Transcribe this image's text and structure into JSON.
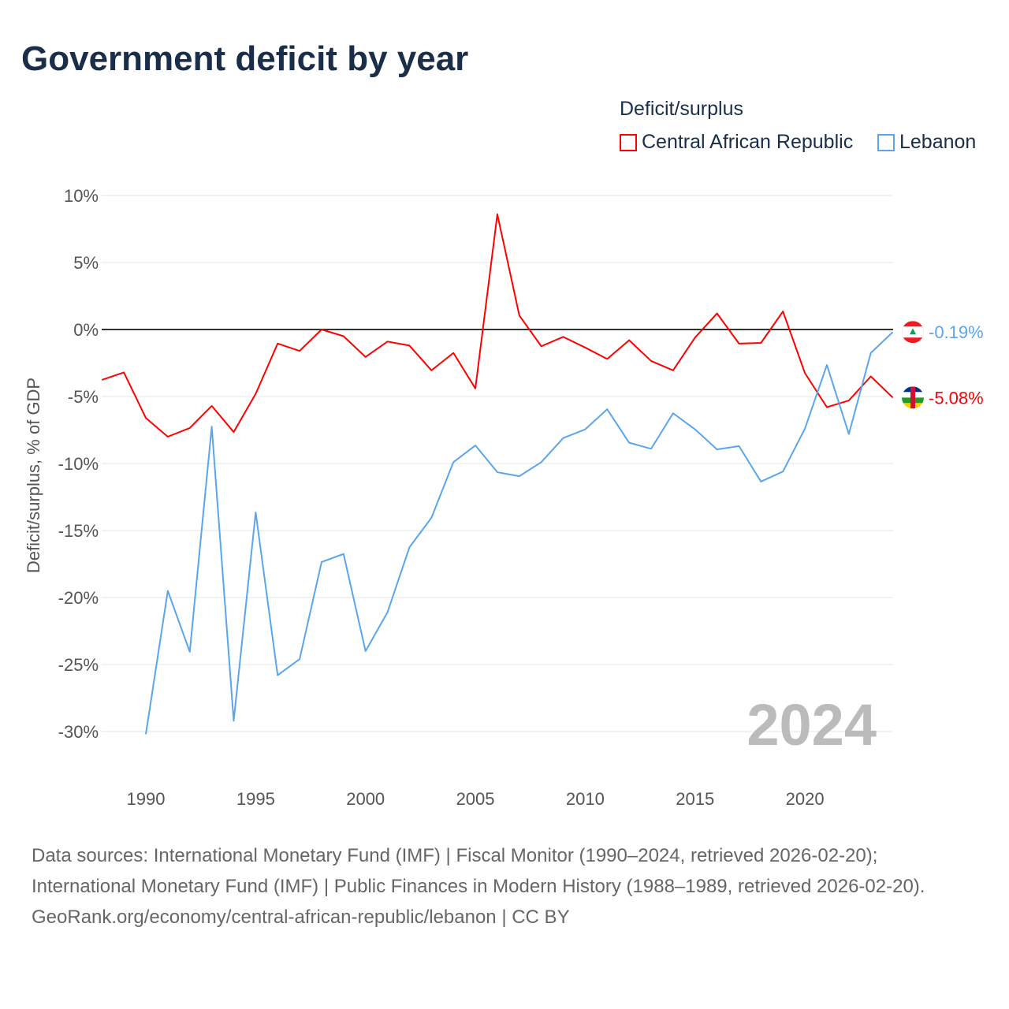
{
  "title": "Government deficit by year",
  "legend": {
    "title": "Deficit/surplus",
    "items": [
      {
        "label": "Central African Republic",
        "color": "#ff0000"
      },
      {
        "label": "Lebanon",
        "color": "#5ba6ea"
      }
    ]
  },
  "chart_data": {
    "type": "line",
    "title": "Government deficit by year",
    "xlabel": "",
    "ylabel": "Deficit/surplus, % of GDP",
    "xlim": [
      1988,
      2024
    ],
    "ylim": [
      -33,
      10
    ],
    "x_ticks": [
      1990,
      1995,
      2000,
      2005,
      2010,
      2015,
      2020
    ],
    "y_ticks": [
      10,
      5,
      0,
      -5,
      -10,
      -15,
      -20,
      -25,
      -30
    ],
    "y_tick_labels": [
      "10%",
      "5%",
      "0%",
      "-5%",
      "-10%",
      "-15%",
      "-20%",
      "-25%",
      "-30%"
    ],
    "grid": true,
    "legend_position": "top-right",
    "year_watermark": "2024",
    "series": [
      {
        "name": "Central African Republic",
        "color": "#ff0000",
        "end_label": "-5.08%",
        "x": [
          1988,
          1989,
          1990,
          1991,
          1992,
          1993,
          1994,
          1995,
          1996,
          1997,
          1998,
          1999,
          2000,
          2001,
          2002,
          2003,
          2004,
          2005,
          2006,
          2007,
          2008,
          2009,
          2010,
          2011,
          2012,
          2013,
          2014,
          2015,
          2016,
          2017,
          2018,
          2019,
          2020,
          2021,
          2022,
          2023,
          2024
        ],
        "values": [
          -3.76,
          -3.2,
          -6.6,
          -8.0,
          -7.35,
          -5.7,
          -7.65,
          -4.8,
          -1.05,
          -1.6,
          0.0,
          -0.5,
          -2.05,
          -0.9,
          -1.2,
          -3.05,
          -1.75,
          -4.4,
          8.6,
          1.05,
          -1.25,
          -0.55,
          -1.35,
          -2.2,
          -0.8,
          -2.35,
          -3.05,
          -0.6,
          1.2,
          -1.05,
          -1.0,
          1.35,
          -3.25,
          -5.8,
          -5.3,
          -3.5,
          -5.08
        ]
      },
      {
        "name": "Lebanon",
        "color": "#5ba6ea",
        "end_label": "-0.19%",
        "x": [
          1990,
          1991,
          1992,
          1993,
          1994,
          1995,
          1996,
          1997,
          1998,
          1999,
          2000,
          2001,
          2002,
          2003,
          2004,
          2005,
          2006,
          2007,
          2008,
          2009,
          2010,
          2011,
          2012,
          2013,
          2014,
          2015,
          2016,
          2017,
          2018,
          2019,
          2020,
          2021,
          2022,
          2023,
          2024
        ],
        "values": [
          -30.2,
          -19.5,
          -24.05,
          -7.25,
          -29.2,
          -13.65,
          -25.8,
          -24.6,
          -17.35,
          -16.75,
          -24.0,
          -21.1,
          -16.25,
          -14.05,
          -9.9,
          -8.65,
          -10.65,
          -10.95,
          -9.9,
          -8.1,
          -7.45,
          -5.95,
          -8.45,
          -8.9,
          -6.25,
          -7.45,
          -8.95,
          -8.7,
          -11.35,
          -10.6,
          -7.4,
          -2.65,
          -7.8,
          -1.75,
          -0.19
        ]
      }
    ]
  },
  "footer": {
    "sources": "Data sources: International Monetary Fund (IMF) | Fiscal Monitor (1990–2024, retrieved 2026-02-20); International Monetary Fund (IMF) | Public Finances in Modern History (1988–1989, retrieved 2026-02-20).",
    "credit": "GeoRank.org/economy/central-african-republic/lebanon | CC BY"
  }
}
